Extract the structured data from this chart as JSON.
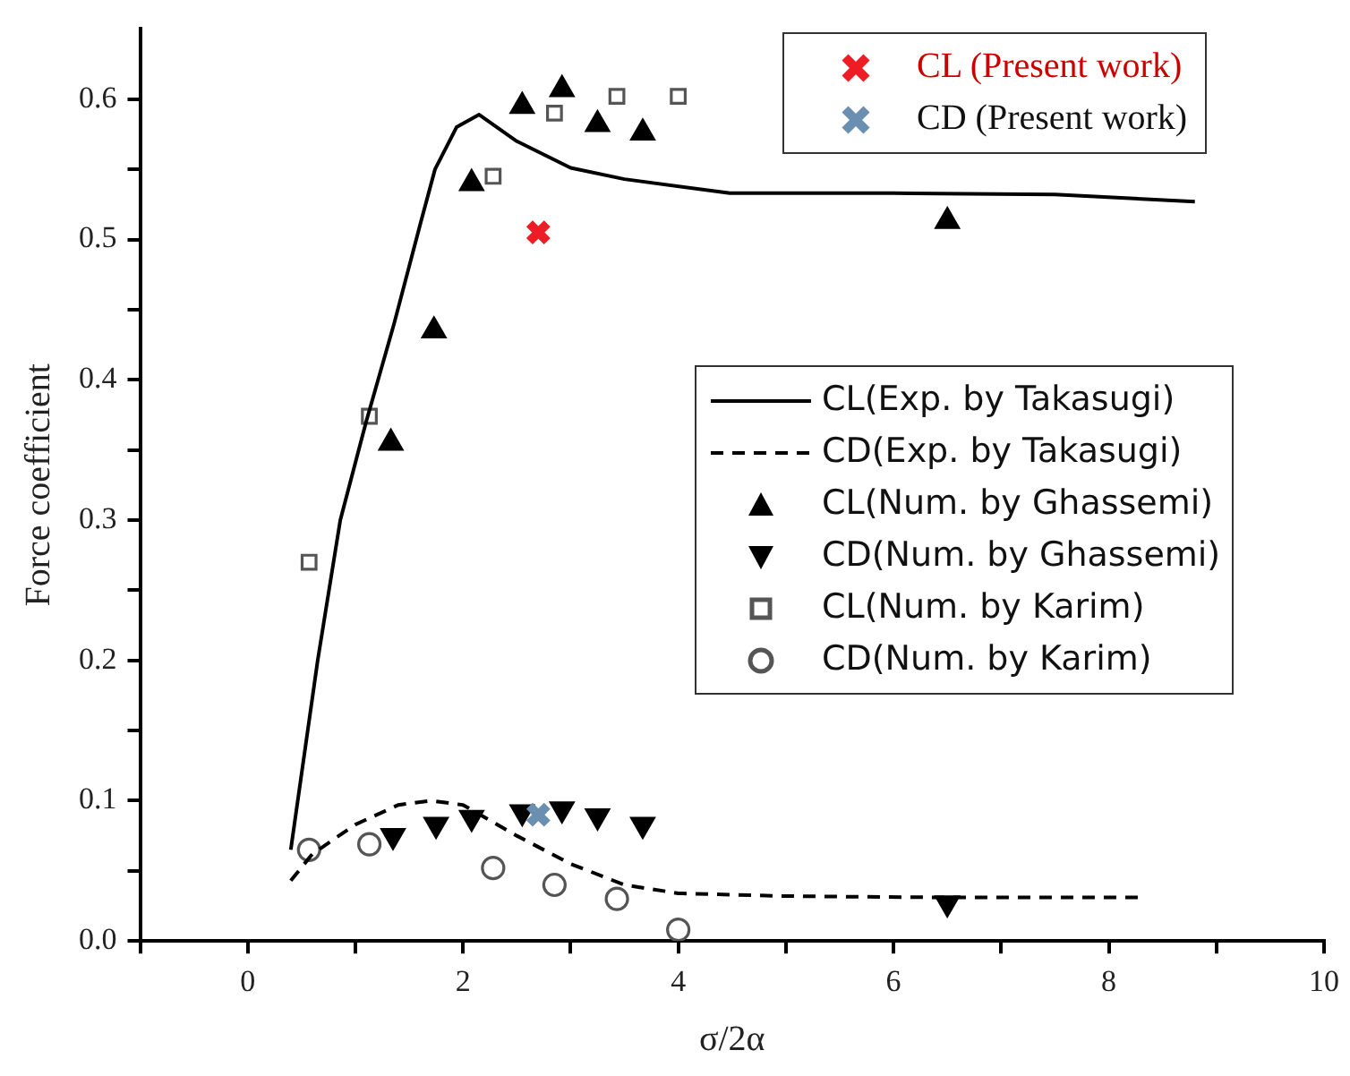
{
  "chart_data": {
    "type": "scatter",
    "xlabel": "σ/2α",
    "ylabel": "Force coefficient",
    "xlim": [
      -1,
      10
    ],
    "ylim": [
      0,
      0.65
    ],
    "xticks": [
      {
        "value": -1,
        "label": null
      },
      0,
      {
        "value": 1,
        "label": null
      },
      2,
      {
        "value": 3,
        "label": null
      },
      4,
      {
        "value": 5,
        "label": null
      },
      6,
      {
        "value": 7,
        "label": null
      },
      8,
      {
        "value": 9,
        "label": null
      },
      10
    ],
    "yticks": [
      {
        "value": 0,
        "label": "0.0"
      },
      {
        "value": 0.05,
        "label": null
      },
      {
        "value": 0.1,
        "label": "0.1"
      },
      {
        "value": 0.15,
        "label": null
      },
      {
        "value": 0.2,
        "label": "0.2"
      },
      {
        "value": 0.25,
        "label": null
      },
      {
        "value": 0.3,
        "label": "0.3"
      },
      {
        "value": 0.35,
        "label": null
      },
      {
        "value": 0.4,
        "label": "0.4"
      },
      {
        "value": 0.45,
        "label": null
      },
      {
        "value": 0.5,
        "label": "0.5"
      },
      {
        "value": 0.55,
        "label": null
      },
      {
        "value": 0.6,
        "label": "0.6"
      }
    ],
    "grid": false,
    "legend": "top right",
    "series": [
      {
        "name": "CL (Present work)",
        "type": "scatter",
        "marker": "cross",
        "color": "#ee1c25",
        "x": [
          2.7
        ],
        "values": [
          0.505
        ]
      },
      {
        "name": "CD (Present work)",
        "type": "scatter",
        "marker": "cross",
        "color": "#6b8fb0",
        "x": [
          2.7
        ],
        "values": [
          0.09
        ]
      },
      {
        "name": "CL(Exp. by Takasugi)",
        "type": "line",
        "marker": "none",
        "line_style": "solid",
        "color": "#000000",
        "x": [
          0.4,
          0.65,
          0.86,
          1.1,
          1.36,
          1.6,
          1.74,
          1.94,
          2.15,
          2.5,
          3.0,
          3.5,
          4.48,
          6.0,
          7.5,
          8.8
        ],
        "values": [
          0.065,
          0.2,
          0.3,
          0.37,
          0.44,
          0.51,
          0.55,
          0.58,
          0.589,
          0.57,
          0.551,
          0.543,
          0.533,
          0.533,
          0.532,
          0.527
        ]
      },
      {
        "name": "CD(Exp. by Takasugi)",
        "type": "line",
        "marker": "none",
        "line_style": "dashed",
        "color": "#000000",
        "x": [
          0.4,
          0.6,
          1.0,
          1.4,
          1.7,
          2.0,
          2.5,
          3.0,
          3.5,
          4.0,
          5.0,
          6.5,
          8.3
        ],
        "values": [
          0.043,
          0.062,
          0.083,
          0.097,
          0.1,
          0.097,
          0.075,
          0.055,
          0.04,
          0.034,
          0.032,
          0.031,
          0.031
        ]
      },
      {
        "name": "CL(Num. by Ghassemi)",
        "type": "scatter",
        "marker": "triangle",
        "color": "#000000",
        "x": [
          1.33,
          1.73,
          2.08,
          2.55,
          2.92,
          3.25,
          3.67,
          6.5
        ],
        "values": [
          0.355,
          0.435,
          0.54,
          0.595,
          0.607,
          0.582,
          0.576,
          0.513
        ]
      },
      {
        "name": "CD(Num. by Ghassemi)",
        "type": "scatter",
        "marker": "triangle-down",
        "color": "#000000",
        "x": [
          1.35,
          1.75,
          2.08,
          2.55,
          2.92,
          3.25,
          3.67,
          6.5
        ],
        "values": [
          0.075,
          0.083,
          0.088,
          0.092,
          0.094,
          0.089,
          0.083,
          0.027
        ]
      },
      {
        "name": "CL(Num. by Karim)",
        "type": "scatter",
        "marker": "square",
        "color": "#555555",
        "x": [
          0.57,
          1.13,
          2.28,
          2.85,
          3.43,
          4.0
        ],
        "values": [
          0.27,
          0.374,
          0.545,
          0.59,
          0.602,
          0.602
        ]
      },
      {
        "name": "CD(Num. by Karim)",
        "type": "scatter",
        "marker": "circle",
        "color": "#555555",
        "x": [
          0.57,
          1.13,
          2.28,
          2.85,
          3.43,
          4.0
        ],
        "values": [
          0.065,
          0.069,
          0.052,
          0.04,
          0.03,
          0.008
        ]
      }
    ]
  }
}
